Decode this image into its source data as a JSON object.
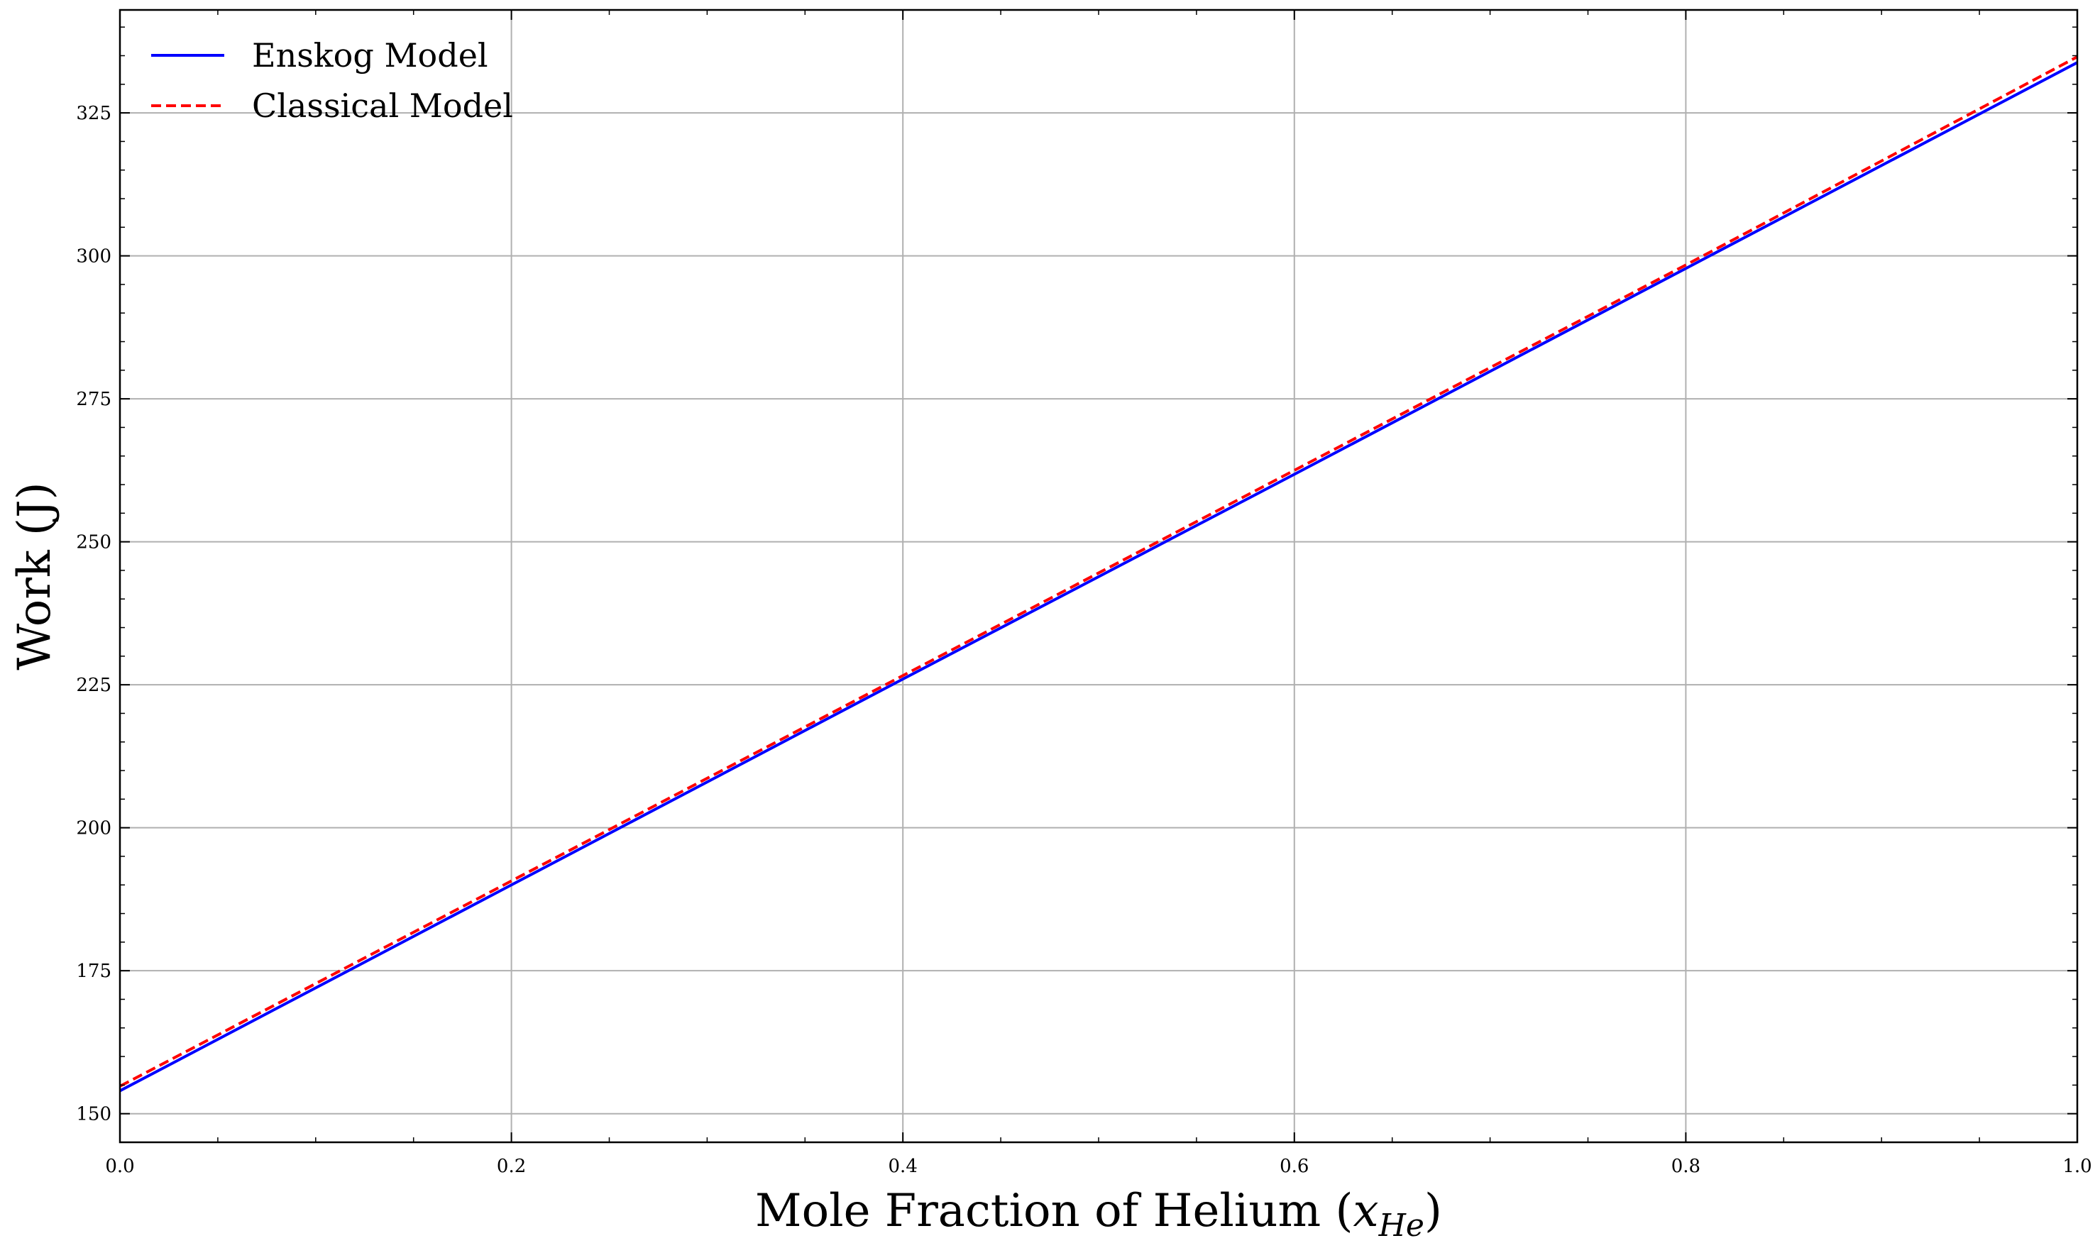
{
  "chart_data": {
    "type": "line",
    "title": "",
    "xlabel": "Mole Fraction of Helium (",
    "xlabel_math_base": "x",
    "xlabel_math_sub": "He",
    "xlabel_close": ")",
    "ylabel": "Work (J)",
    "xlim": [
      0.0,
      1.0
    ],
    "ylim": [
      145,
      343
    ],
    "grid": true,
    "legend_position": "top-left",
    "x_ticks": [
      0.0,
      0.2,
      0.4,
      0.6,
      0.8,
      1.0
    ],
    "x_tick_labels": [
      "0.0",
      "0.2",
      "0.4",
      "0.6",
      "0.8",
      "1.0"
    ],
    "y_ticks": [
      150,
      175,
      200,
      225,
      250,
      275,
      300,
      325
    ],
    "y_tick_labels": [
      "150",
      "175",
      "200",
      "225",
      "250",
      "275",
      "300",
      "325"
    ],
    "series": [
      {
        "name": "Enskog Model",
        "color": "#0000ff",
        "style": "solid",
        "x": [
          0.0,
          0.2,
          0.4,
          0.6,
          0.8,
          1.0
        ],
        "y": [
          154.0,
          190.0,
          226.0,
          261.8,
          297.8,
          333.8
        ]
      },
      {
        "name": "Classical Model",
        "color": "#ff0000",
        "style": "dashed",
        "x": [
          0.0,
          0.2,
          0.4,
          0.6,
          0.8,
          1.0
        ],
        "y": [
          154.8,
          190.7,
          226.6,
          262.5,
          298.4,
          334.8
        ]
      }
    ]
  }
}
